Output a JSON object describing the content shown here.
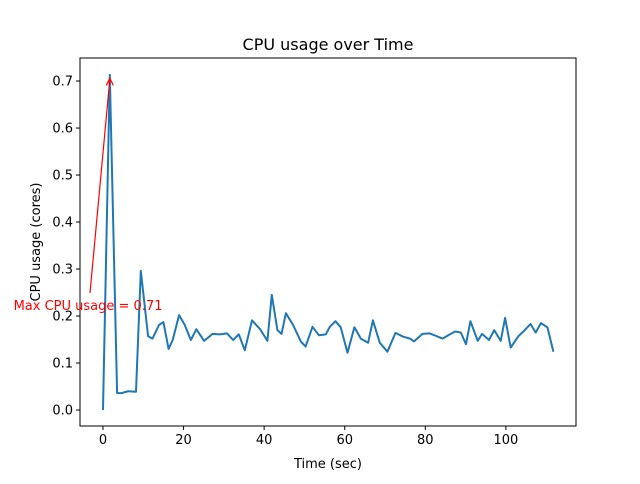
{
  "chart_data": {
    "type": "line",
    "title": "CPU usage over Time",
    "xlabel": "Time (sec)",
    "ylabel": "CPU usage (cores)",
    "xlim": [
      -5.7,
      117.4
    ],
    "ylim": [
      -0.034,
      0.749
    ],
    "xticks": [
      0,
      20,
      40,
      60,
      80,
      100
    ],
    "xtick_labels": [
      "0",
      "20",
      "40",
      "60",
      "80",
      "100"
    ],
    "yticks": [
      0.0,
      0.1,
      0.2,
      0.3,
      0.4,
      0.5,
      0.6,
      0.7
    ],
    "ytick_labels": [
      "0.0",
      "0.1",
      "0.2",
      "0.3",
      "0.4",
      "0.5",
      "0.6",
      "0.7"
    ],
    "grid": false,
    "series": [
      {
        "name": "CPU usage",
        "color": "#1f77b4",
        "x": [
          0,
          1.7,
          3.5,
          4.6,
          6.3,
          8.2,
          9.4,
          11.2,
          12.3,
          13.9,
          15,
          16.3,
          17.3,
          18.9,
          20.3,
          21.8,
          23.2,
          25.1,
          27.2,
          29,
          30.8,
          32.3,
          33.7,
          35.2,
          37,
          39,
          40.8,
          41.9,
          43.3,
          44.3,
          45.4,
          47.2,
          49.1,
          50.3,
          52,
          53.6,
          55.3,
          56.3,
          57.7,
          59,
          60.7,
          62.4,
          64,
          65.8,
          67,
          68.7,
          70.6,
          72.6,
          74.5,
          76.2,
          77.2,
          79.3,
          81.1,
          82.6,
          84.3,
          85.9,
          87.4,
          88.8,
          90.1,
          91.2,
          93,
          94.1,
          95.8,
          97.1,
          98.7,
          99.8,
          101.2,
          103.1,
          104.7,
          106.1,
          107.4,
          108.7,
          110.3,
          111.8
        ],
        "y": [
          0.0,
          0.713,
          0.036,
          0.036,
          0.04,
          0.039,
          0.296,
          0.157,
          0.152,
          0.181,
          0.187,
          0.13,
          0.149,
          0.202,
          0.181,
          0.149,
          0.172,
          0.147,
          0.162,
          0.161,
          0.163,
          0.149,
          0.161,
          0.127,
          0.191,
          0.172,
          0.147,
          0.245,
          0.17,
          0.162,
          0.206,
          0.181,
          0.146,
          0.135,
          0.177,
          0.159,
          0.161,
          0.177,
          0.189,
          0.176,
          0.122,
          0.176,
          0.152,
          0.143,
          0.191,
          0.143,
          0.124,
          0.164,
          0.156,
          0.152,
          0.146,
          0.162,
          0.163,
          0.158,
          0.152,
          0.16,
          0.167,
          0.165,
          0.14,
          0.189,
          0.147,
          0.162,
          0.149,
          0.17,
          0.147,
          0.196,
          0.133,
          0.157,
          0.17,
          0.183,
          0.165,
          0.185,
          0.176,
          0.124
        ]
      }
    ],
    "annotation": {
      "text": "Max CPU usage = 0.71",
      "color": "#ff0000",
      "xy": [
        1.7,
        0.71
      ],
      "xytext": [
        -3.7,
        0.2
      ]
    }
  }
}
